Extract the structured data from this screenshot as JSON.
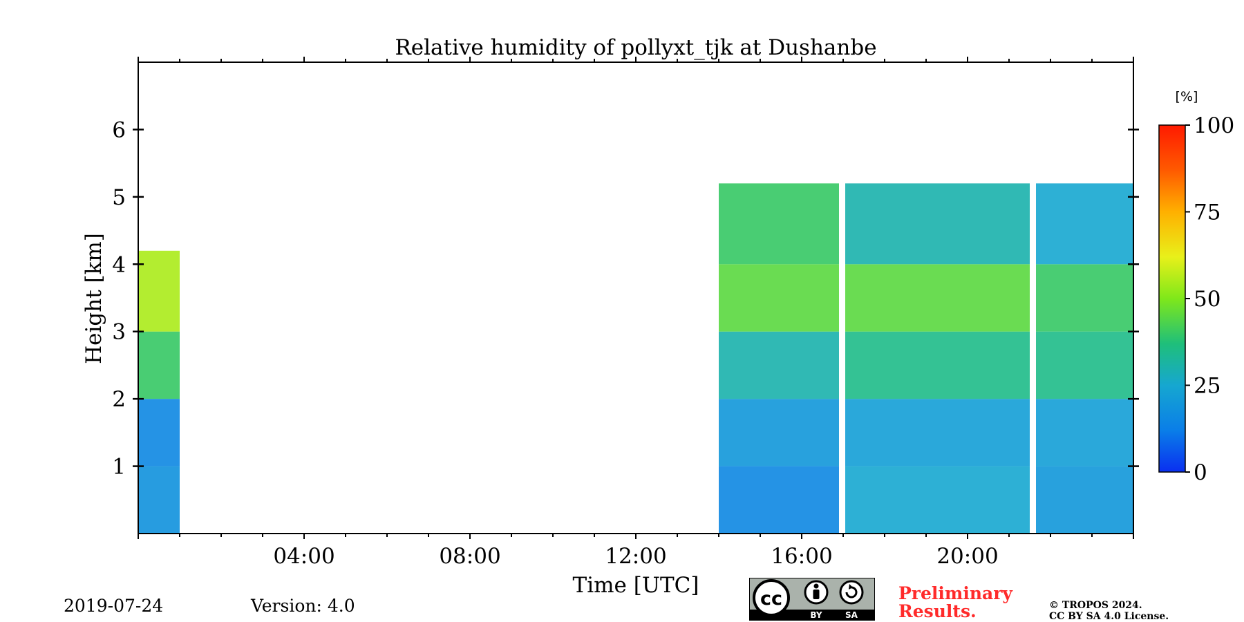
{
  "chart_data": {
    "type": "heatmap",
    "title": "Relative humidity of pollyxt_tjk at Dushanbe",
    "xlabel": "Time [UTC]",
    "ylabel": "Height [km]",
    "xlim": [
      0,
      24
    ],
    "ylim": [
      0,
      7
    ],
    "x_ticks": [
      "04:00",
      "08:00",
      "12:00",
      "16:00",
      "20:00"
    ],
    "x_tick_values": [
      4,
      8,
      12,
      16,
      20
    ],
    "y_ticks": [
      "1",
      "2",
      "3",
      "4",
      "5",
      "6"
    ],
    "y_tick_values": [
      1,
      2,
      3,
      4,
      5,
      6
    ],
    "colorbar": {
      "unit": "[%]",
      "min": 0,
      "max": 100,
      "ticks": [
        "0",
        "25",
        "50",
        "75",
        "100"
      ],
      "tick_values": [
        0,
        25,
        50,
        75,
        100
      ],
      "colormap": "jet"
    },
    "data_segments": [
      {
        "start_hour": 0.0,
        "end_hour": 1.0,
        "typical_rh": [
          [
            0.5,
            18
          ],
          [
            1.5,
            15
          ],
          [
            2.5,
            40
          ],
          [
            3.5,
            55
          ]
        ]
      },
      {
        "start_hour": 14.0,
        "end_hour": 16.9,
        "typical_rh": [
          [
            0.5,
            15
          ],
          [
            1.5,
            20
          ],
          [
            2.5,
            30
          ],
          [
            3.5,
            45
          ],
          [
            4.5,
            40
          ]
        ]
      },
      {
        "start_hour": 17.05,
        "end_hour": 21.5,
        "typical_rh": [
          [
            0.5,
            25
          ],
          [
            1.5,
            22
          ],
          [
            2.5,
            35
          ],
          [
            3.5,
            45
          ],
          [
            4.5,
            30
          ]
        ]
      },
      {
        "start_hour": 21.65,
        "end_hour": 24.0,
        "typical_rh": [
          [
            0.5,
            20
          ],
          [
            1.5,
            22
          ],
          [
            2.5,
            35
          ],
          [
            3.5,
            40
          ],
          [
            4.5,
            25
          ]
        ]
      }
    ]
  },
  "footer": {
    "date": "2019-07-24",
    "version": "Version: 4.0",
    "license_badge": {
      "by": "BY",
      "sa": "SA"
    },
    "preliminary": "Preliminary Results.",
    "copyright_line1": "© TROPOS 2024.",
    "copyright_line2": "CC BY SA 4.0 License."
  }
}
